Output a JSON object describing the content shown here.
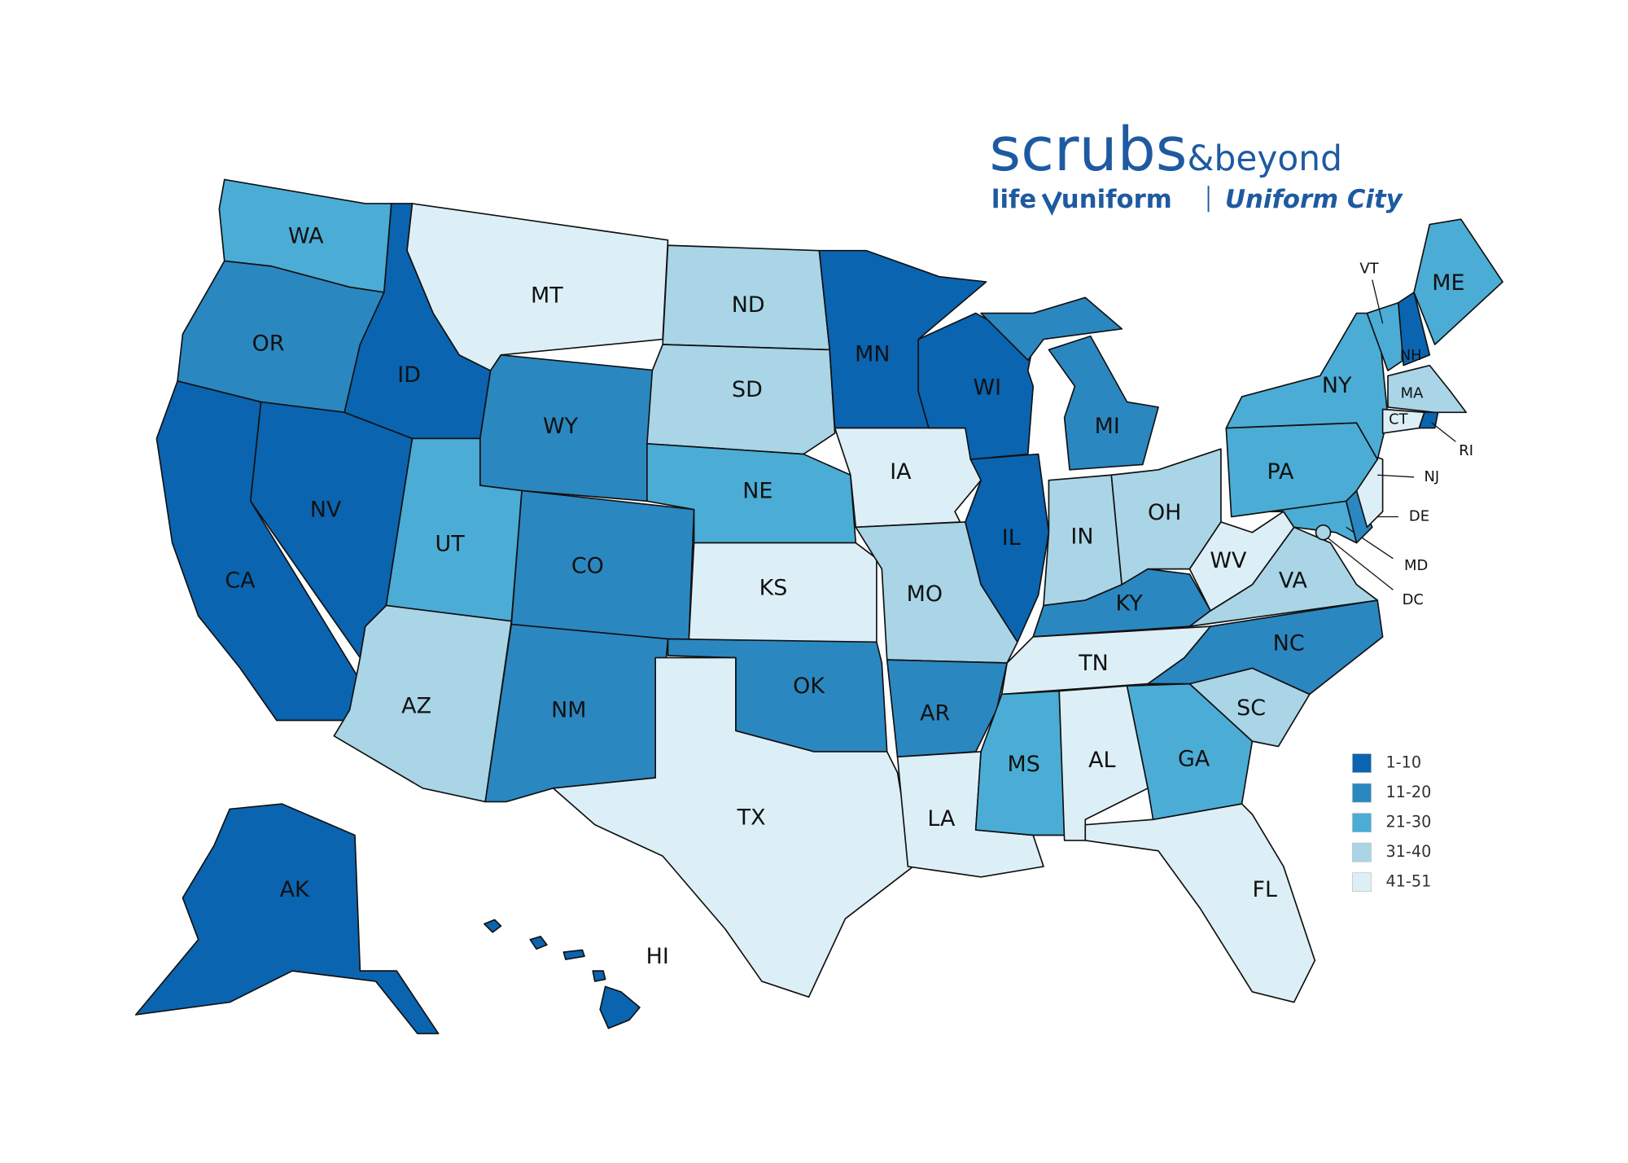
{
  "logo": {
    "brand": "scrubs",
    "brand_suffix": "&beyond",
    "sub_left_a": "life",
    "sub_left_b": "uniform",
    "sub_right": "Uniform City"
  },
  "legend": [
    {
      "label": "1-10",
      "color": "#0a64b0",
      "states": [
        "ID",
        "CA",
        "NV",
        "MN",
        "WI",
        "IL",
        "NH",
        "AK",
        "HI",
        "RI"
      ]
    },
    {
      "label": "11-20",
      "color": "#2b87c0",
      "states": [
        "OR",
        "WY",
        "CO",
        "NM",
        "OK",
        "AR",
        "MI",
        "KY",
        "NC",
        "DE"
      ]
    },
    {
      "label": "21-30",
      "color": "#4badd5",
      "states": [
        "WA",
        "UT",
        "NE",
        "MS",
        "GA",
        "NY",
        "PA",
        "VT",
        "ME",
        "MD"
      ]
    },
    {
      "label": "31-40",
      "color": "#a9d5e7",
      "states": [
        "ND",
        "SD",
        "AZ",
        "MO",
        "IN",
        "OH",
        "SC",
        "VA",
        "MA",
        "DC"
      ]
    },
    {
      "label": "41-51",
      "color": "#ddeff6",
      "states": [
        "MT",
        "KS",
        "IA",
        "TX",
        "LA",
        "AL",
        "TN",
        "WV",
        "FL",
        "NJ",
        "CT"
      ]
    }
  ]
}
